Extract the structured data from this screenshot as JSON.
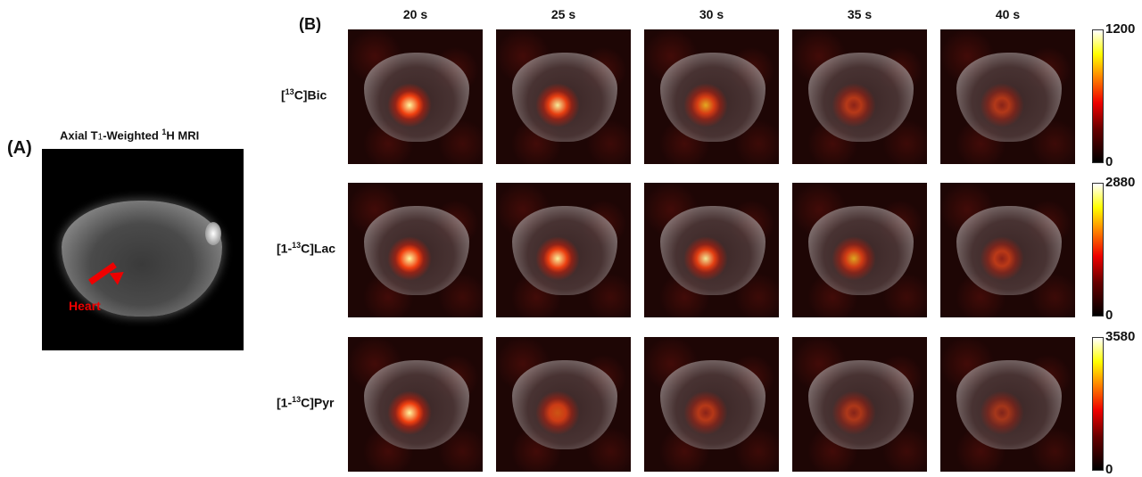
{
  "panel_a": {
    "label": "(A)",
    "title_pre": "Axial T",
    "title_sub": "1",
    "title_mid": "-Weighted ",
    "title_sup": "1",
    "title_post": "H MRI",
    "annotation": "Heart",
    "annotation_color": "#e00000"
  },
  "panel_b": {
    "label": "(B)",
    "columns": [
      "20 s",
      "25 s",
      "30 s",
      "35 s",
      "40 s"
    ],
    "rows": [
      {
        "pre": "[",
        "sup": "13",
        "post": "C]Bic",
        "cbar_max": "1200",
        "cbar_min": "0"
      },
      {
        "pre": "[1-",
        "sup": "13",
        "post": "C]Lac",
        "cbar_max": "2880",
        "cbar_min": "0"
      },
      {
        "pre": "[1-",
        "sup": "13",
        "post": "C]Pyr",
        "cbar_max": "3580",
        "cbar_min": "0"
      }
    ],
    "colormap": "hot"
  }
}
